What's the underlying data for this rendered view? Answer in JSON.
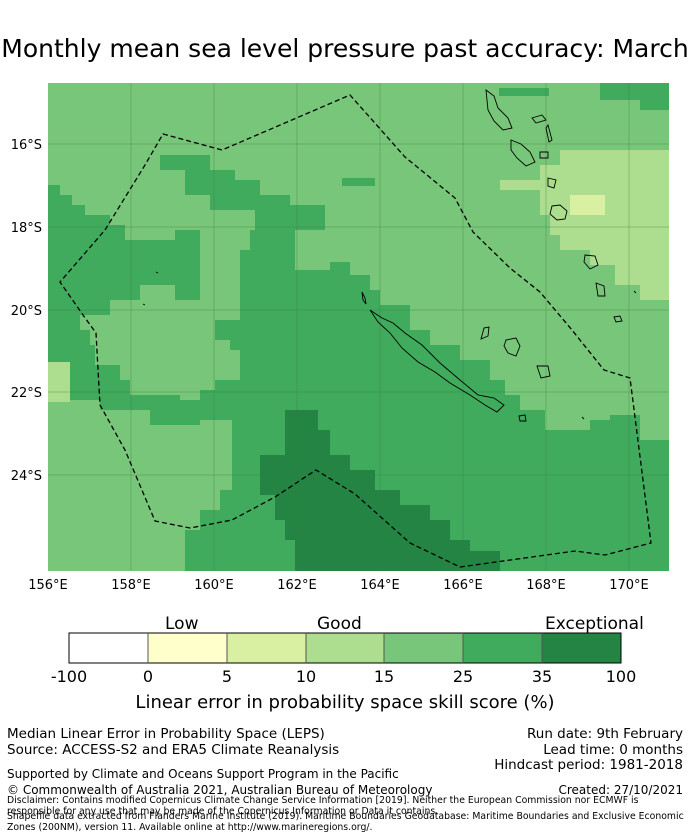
{
  "title": "Monthly mean sea level pressure past accuracy: March",
  "map": {
    "lat_labels": [
      "16°S",
      "18°S",
      "20°S",
      "22°S",
      "24°S"
    ],
    "lon_labels": [
      "156°E",
      "158°E",
      "160°E",
      "162°E",
      "164°E",
      "166°E",
      "168°E",
      "170°E"
    ]
  },
  "colorbar": {
    "category_labels": [
      "Low",
      "Good",
      "Exceptional"
    ],
    "ticks": [
      "-100",
      "0",
      "5",
      "10",
      "15",
      "25",
      "35",
      "100"
    ],
    "colors": [
      "#ffffff",
      "#ffffcc",
      "#d9f0a3",
      "#addd8e",
      "#78c679",
      "#41ab5d",
      "#238443"
    ],
    "title": "Linear error in probability space skill score (%)"
  },
  "footer": {
    "left_line1": "Median Linear Error in Probability Space (LEPS)",
    "left_line2": "Source: ACCESS-S2 and ERA5 Climate Reanalysis",
    "right_line1": "Run date: 9th February",
    "right_line2": "Lead time: 0 months",
    "right_line3": "Hindcast period: 1981-2018",
    "support": "Supported by Climate and Oceans Support Program in the Pacific",
    "copyright": "© Commonwealth of Australia 2021, Australian Bureau of Meteorology",
    "created": "Created: 27/10/2021",
    "disclaimer": "Disclaimer: Contains modified Copernicus Climate Change Service Information [2019]. Neither the European Commission nor ECMWF is responsible for any use that may be made of the Copernicus Information or Data it contains.",
    "shapefile": "Shapefile data extracted from Flanders Marine Institute (2019). Maritime Boundaries Geodatabase: Maritime Boundaries and Exclusive Economic Zones (200NM), version 11. Available online at http://www.marineregions.org/."
  }
}
